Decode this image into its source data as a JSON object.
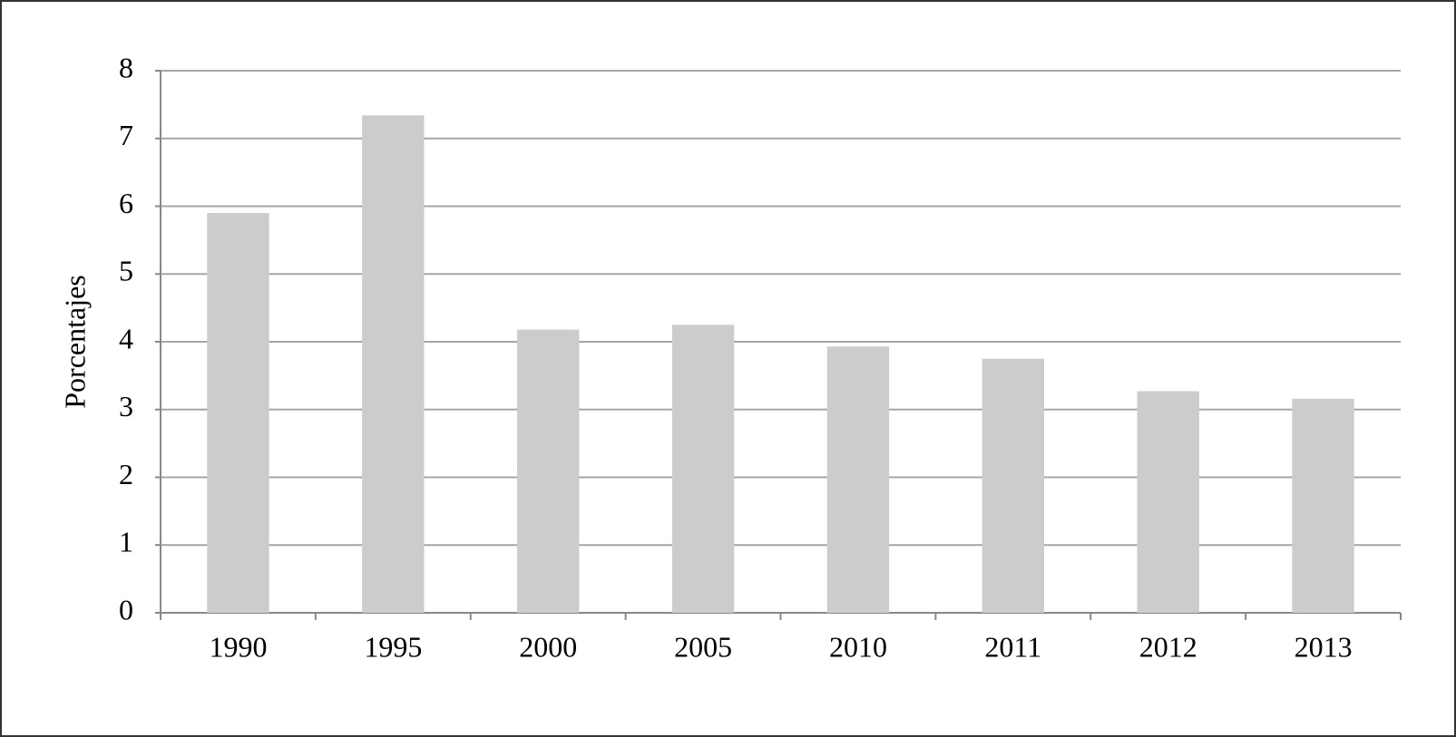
{
  "chart_data": {
    "type": "bar",
    "y_label": "Porcentajes",
    "categories": [
      "1990",
      "1995",
      "2000",
      "2005",
      "2010",
      "2011",
      "2012",
      "2013"
    ],
    "values": [
      5.9,
      7.34,
      4.18,
      4.25,
      3.93,
      3.75,
      3.27,
      3.16
    ],
    "color": "#cccccc",
    "ylim": [
      0,
      8
    ],
    "yticks": [
      0,
      1,
      2,
      3,
      4,
      5,
      6,
      7,
      8
    ],
    "grid": true
  }
}
